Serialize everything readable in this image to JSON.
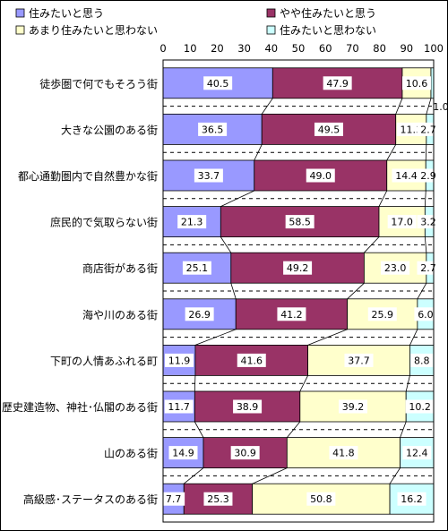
{
  "chart_data": {
    "type": "bar",
    "orientation": "horizontal",
    "stacked": true,
    "categories": [
      "徒歩圏で何でもそろう街",
      "大きな公園のある街",
      "都心通勤圏内で自然豊かな街",
      "庶民的で気取らない街",
      "商店街がある街",
      "海や川のある街",
      "下町の人情あふれる町",
      "歴史建造物、神社･仏閣のある街",
      "山のある街",
      "高級感･ステータスのある街"
    ],
    "series": [
      {
        "name": "住みたいと思う",
        "color": "#9999ff",
        "values": [
          40.5,
          36.5,
          33.7,
          21.3,
          25.1,
          26.9,
          11.9,
          11.7,
          14.9,
          7.7
        ]
      },
      {
        "name": "やや住みたいと思う",
        "color": "#993366",
        "values": [
          47.9,
          49.5,
          49.0,
          58.5,
          49.2,
          41.2,
          41.6,
          38.9,
          30.9,
          25.3
        ]
      },
      {
        "name": "あまり住みたいと思わない",
        "color": "#ffffcc",
        "values": [
          10.6,
          11.3,
          14.4,
          17.0,
          23.0,
          25.9,
          37.7,
          39.2,
          41.8,
          50.8
        ]
      },
      {
        "name": "住みたいと思わない",
        "color": "#ccffff",
        "values": [
          1.0,
          2.7,
          2.9,
          3.2,
          2.7,
          6.0,
          8.8,
          10.2,
          12.4,
          16.2
        ]
      }
    ],
    "labels": [
      [
        "40.5",
        "47.9",
        "10.6",
        "1.0"
      ],
      [
        "36.5",
        "49.5",
        "11.3",
        "2.7"
      ],
      [
        "33.7",
        "49.0",
        "14.4",
        "2.9"
      ],
      [
        "21.3",
        "58.5",
        "17.0",
        "3.2"
      ],
      [
        "25.1",
        "49.2",
        "23.0",
        "2.7"
      ],
      [
        "26.9",
        "41.2",
        "25.9",
        "6.0"
      ],
      [
        "11.9",
        "41.6",
        "37.7",
        "8.8"
      ],
      [
        "11.7",
        "38.9",
        "39.2",
        "10.2"
      ],
      [
        "14.9",
        "30.9",
        "41.8",
        "12.4"
      ],
      [
        "7.7",
        "25.3",
        "50.8",
        "16.2"
      ]
    ],
    "xlim": [
      0,
      100
    ],
    "xticks": [
      "0",
      "10",
      "20",
      "30",
      "40",
      "50",
      "60",
      "70",
      "80",
      "90",
      "100"
    ],
    "grid": true,
    "series_lines": true,
    "legend_position": "top",
    "title": "",
    "xlabel": "",
    "ylabel": ""
  }
}
